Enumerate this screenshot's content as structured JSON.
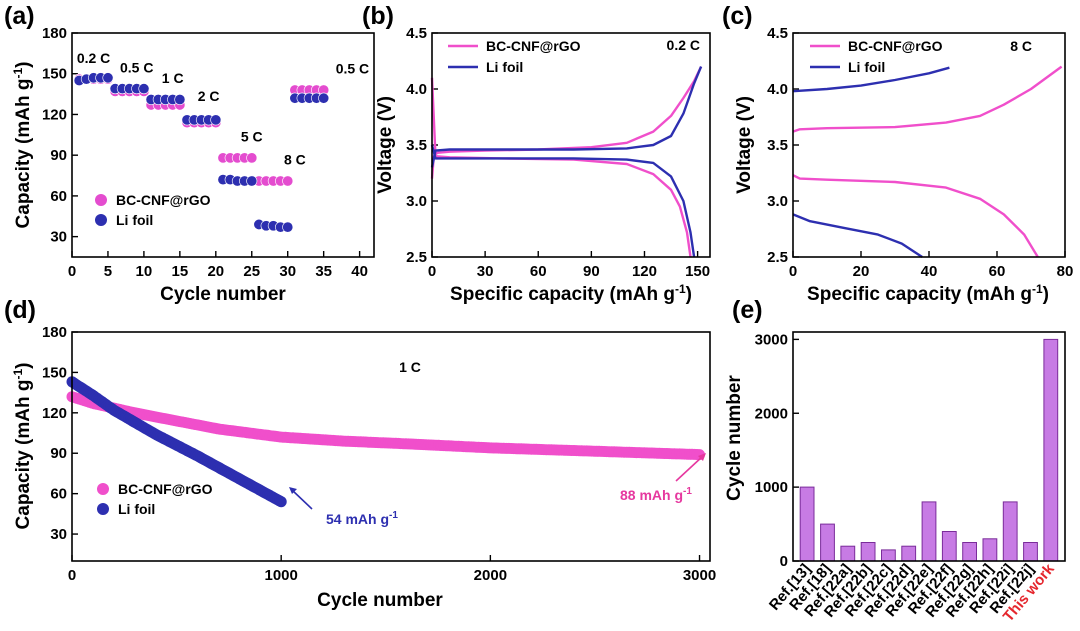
{
  "chart_data": [
    {
      "panel": "(a)",
      "type": "scatter",
      "xlabel": "Cycle number",
      "ylabel": "Capacity (mAh g",
      "ylabel_sup": "-1",
      "ylabel_end": ")",
      "xlim": [
        0,
        42
      ],
      "ylim": [
        15,
        180
      ],
      "xticks": [
        0,
        5,
        10,
        15,
        20,
        25,
        30,
        35,
        40
      ],
      "yticks": [
        30,
        60,
        90,
        120,
        150,
        180
      ],
      "annotations": [
        {
          "text": "0.2 C",
          "x": 3,
          "y": 158
        },
        {
          "text": "0.5 C",
          "x": 9,
          "y": 151
        },
        {
          "text": "1 C",
          "x": 14,
          "y": 143
        },
        {
          "text": "2 C",
          "x": 19,
          "y": 130
        },
        {
          "text": "5 C",
          "x": 25,
          "y": 100
        },
        {
          "text": "8 C",
          "x": 31,
          "y": 83
        },
        {
          "text": "0.5 C",
          "x": 39,
          "y": 150
        }
      ],
      "legend": [
        "BC-CNF@rGO",
        "Li foil"
      ],
      "series": [
        {
          "name": "BC-CNF@rGO",
          "color": "#e44ccf",
          "segments": [
            {
              "x": [
                1,
                2,
                3,
                4,
                5
              ],
              "y": [
                146,
                146,
                146,
                146,
                146
              ]
            },
            {
              "x": [
                6,
                7,
                8,
                9,
                10
              ],
              "y": [
                137,
                137,
                137,
                137,
                137
              ]
            },
            {
              "x": [
                11,
                12,
                13,
                14,
                15
              ],
              "y": [
                127,
                127,
                127,
                127,
                127
              ]
            },
            {
              "x": [
                16,
                17,
                18,
                19,
                20
              ],
              "y": [
                114,
                114,
                114,
                114,
                114
              ]
            },
            {
              "x": [
                21,
                22,
                23,
                24,
                25
              ],
              "y": [
                88,
                88,
                88,
                88,
                88
              ]
            },
            {
              "x": [
                26,
                27,
                28,
                29,
                30
              ],
              "y": [
                71,
                71,
                71,
                71,
                71
              ]
            },
            {
              "x": [
                31,
                32,
                33,
                34,
                35
              ],
              "y": [
                138,
                138,
                138,
                138,
                138
              ]
            }
          ]
        },
        {
          "name": "Li foil",
          "color": "#2d2fb0",
          "segments": [
            {
              "x": [
                1,
                2,
                3,
                4,
                5
              ],
              "y": [
                145,
                146,
                147,
                147,
                147
              ]
            },
            {
              "x": [
                6,
                7,
                8,
                9,
                10
              ],
              "y": [
                139,
                139,
                139,
                139,
                139
              ]
            },
            {
              "x": [
                11,
                12,
                13,
                14,
                15
              ],
              "y": [
                131,
                131,
                131,
                131,
                131
              ]
            },
            {
              "x": [
                16,
                17,
                18,
                19,
                20
              ],
              "y": [
                116,
                116,
                116,
                116,
                116
              ]
            },
            {
              "x": [
                21,
                22,
                23,
                24,
                25
              ],
              "y": [
                72,
                72,
                71,
                71,
                71
              ]
            },
            {
              "x": [
                26,
                27,
                28,
                29,
                30
              ],
              "y": [
                39,
                38,
                38,
                37,
                37
              ]
            },
            {
              "x": [
                31,
                32,
                33,
                34,
                35
              ],
              "y": [
                132,
                132,
                132,
                132,
                132
              ]
            }
          ]
        }
      ]
    },
    {
      "panel": "(b)",
      "type": "line",
      "xlabel": "Specific capacity (mAh g",
      "xlabel_sup": "-1",
      "xlabel_end": ")",
      "ylabel": "Voltage (V)",
      "xlim": [
        0,
        157
      ],
      "ylim": [
        2.5,
        4.5
      ],
      "xticks": [
        0,
        30,
        60,
        90,
        120,
        150
      ],
      "yticks": [
        2.5,
        3.0,
        3.5,
        4.0,
        4.5
      ],
      "rate": "0.2 C",
      "legend": [
        "BC-CNF@rGO",
        "Li foil"
      ],
      "series": [
        {
          "name": "BC-CNF@rGO charge",
          "color": "#f04fcb",
          "x": [
            0,
            1,
            3,
            10,
            30,
            60,
            90,
            110,
            125,
            135,
            142,
            148,
            152
          ],
          "y": [
            3.2,
            3.4,
            3.43,
            3.44,
            3.45,
            3.46,
            3.48,
            3.52,
            3.62,
            3.76,
            3.92,
            4.07,
            4.2
          ]
        },
        {
          "name": "BC-CNF@rGO discharge",
          "color": "#f04fcb",
          "x": [
            0,
            2,
            10,
            40,
            80,
            110,
            125,
            135,
            140,
            144,
            146
          ],
          "y": [
            4.1,
            3.4,
            3.39,
            3.38,
            3.37,
            3.33,
            3.24,
            3.1,
            2.95,
            2.72,
            2.5
          ]
        },
        {
          "name": "Li foil charge",
          "color": "#2d2fb0",
          "x": [
            0,
            2,
            10,
            40,
            80,
            110,
            125,
            135,
            142,
            148,
            152
          ],
          "y": [
            3.3,
            3.45,
            3.46,
            3.46,
            3.46,
            3.47,
            3.5,
            3.58,
            3.78,
            4.05,
            4.2
          ]
        },
        {
          "name": "Li foil discharge",
          "color": "#2d2fb0",
          "x": [
            0,
            2,
            10,
            40,
            80,
            110,
            125,
            135,
            142,
            146,
            148
          ],
          "y": [
            3.5,
            3.38,
            3.38,
            3.38,
            3.38,
            3.37,
            3.34,
            3.22,
            3.0,
            2.72,
            2.5
          ]
        }
      ]
    },
    {
      "panel": "(c)",
      "type": "line",
      "xlabel": "Specific capacity (mAh g",
      "xlabel_sup": "-1",
      "xlabel_end": ")",
      "ylabel": "Voltage (V)",
      "xlim": [
        0,
        80
      ],
      "ylim": [
        2.5,
        4.5
      ],
      "xticks": [
        0,
        20,
        40,
        60,
        80
      ],
      "yticks": [
        2.5,
        3.0,
        3.5,
        4.0,
        4.5
      ],
      "rate": "8 C",
      "legend": [
        "BC-CNF@rGO",
        "Li foil"
      ],
      "series": [
        {
          "name": "BC-CNF@rGO charge",
          "color": "#f04fcb",
          "x": [
            0,
            2,
            10,
            30,
            45,
            55,
            62,
            70,
            79
          ],
          "y": [
            3.62,
            3.64,
            3.65,
            3.66,
            3.7,
            3.76,
            3.86,
            4.0,
            4.2
          ]
        },
        {
          "name": "BC-CNF@rGO discharge",
          "color": "#f04fcb",
          "x": [
            0,
            2,
            10,
            30,
            45,
            55,
            62,
            68,
            72
          ],
          "y": [
            3.23,
            3.2,
            3.19,
            3.17,
            3.12,
            3.02,
            2.88,
            2.7,
            2.5
          ]
        },
        {
          "name": "Li foil charge",
          "color": "#2d2fb0",
          "x": [
            0,
            10,
            20,
            30,
            40,
            46
          ],
          "y": [
            3.98,
            4.0,
            4.03,
            4.08,
            4.14,
            4.19
          ]
        },
        {
          "name": "Li foil discharge",
          "color": "#2d2fb0",
          "x": [
            0,
            5,
            15,
            25,
            32,
            38
          ],
          "y": [
            2.88,
            2.82,
            2.76,
            2.7,
            2.62,
            2.5
          ]
        }
      ]
    },
    {
      "panel": "(d)",
      "type": "scatter",
      "xlabel": "Cycle number",
      "ylabel": "Capacity (mAh g",
      "ylabel_sup": "-1",
      "ylabel_end": ")",
      "xlim": [
        0,
        3050
      ],
      "ylim": [
        10,
        180
      ],
      "xticks": [
        0,
        1000,
        2000,
        3000
      ],
      "yticks": [
        30,
        60,
        90,
        120,
        150,
        180
      ],
      "rate": "1 C",
      "legend": [
        "BC-CNF@rGO",
        "Li foil"
      ],
      "annotations": [
        {
          "text": "54 mAh g",
          "sup": "-1",
          "color": "#2d2fb0"
        },
        {
          "text": "88 mAh g",
          "sup": "-1",
          "color": "#e6389f"
        }
      ],
      "series": [
        {
          "name": "BC-CNF@rGO",
          "color": "#f04fcb",
          "x": [
            0,
            100,
            300,
            500,
            700,
            1000,
            1300,
            1600,
            2000,
            2400,
            2800,
            3000
          ],
          "y": [
            132,
            127,
            120,
            114,
            108,
            102,
            99,
            97,
            94,
            92,
            90,
            89
          ]
        },
        {
          "name": "Li foil",
          "color": "#2d2fb0",
          "x": [
            0,
            100,
            200,
            400,
            600,
            800,
            1000
          ],
          "y": [
            143,
            133,
            122,
            104,
            88,
            71,
            54
          ]
        }
      ]
    },
    {
      "panel": "(e)",
      "type": "bar",
      "ylabel": "Cycle number",
      "ylim": [
        0,
        3100
      ],
      "yticks": [
        0,
        1000,
        2000,
        3000
      ],
      "categories": [
        "Ref.[13]",
        "Ref.[18]",
        "Ref.[22a]",
        "Ref.[22b]",
        "Ref.[22c]",
        "Ref.[22d]",
        "Ref.[22e]",
        "Ref.[22f]",
        "Ref.[22g]",
        "Ref.[22h]",
        "Ref.[22i]",
        "Ref.[22j]",
        "This work"
      ],
      "values": [
        1000,
        500,
        200,
        250,
        150,
        200,
        800,
        400,
        250,
        300,
        800,
        250,
        3000
      ],
      "bar_color": "#c77be4",
      "highlight_label_color": "#e5262d"
    }
  ]
}
